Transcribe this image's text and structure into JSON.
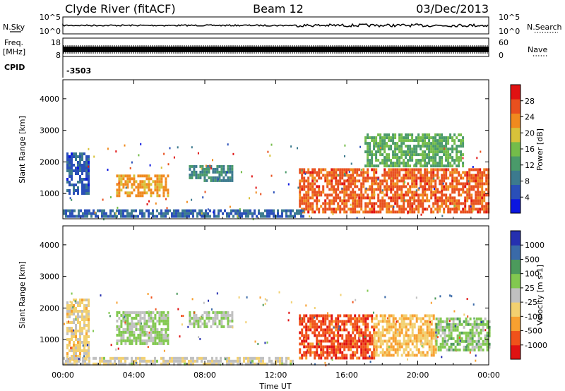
{
  "header": {
    "station": "Clyde River (fitACF)",
    "beam": "Beam 12",
    "date": "03/Dec/2013"
  },
  "top_panels": {
    "nsky": {
      "left_label": "N.Sky",
      "right_label": "N.Search",
      "ticks": [
        "10^5",
        "10^0"
      ],
      "right_ticks": [
        "10^5",
        "10^0"
      ]
    },
    "freq": {
      "left_label": "Freq.",
      "unit": "[MHz]",
      "ticks": [
        "18",
        "8"
      ],
      "right_label": "Nave",
      "right_ticks": [
        "60",
        "0"
      ]
    },
    "cpid": {
      "label": "CPID",
      "value": "-3503"
    }
  },
  "colors": {
    "power_scale": [
      "#0b16e0",
      "#2a4fb8",
      "#3c7a8e",
      "#4a9a6a",
      "#74bc4a",
      "#d8c23a",
      "#f08a1e",
      "#e8501e",
      "#e01212"
    ],
    "velocity_scale": [
      "#e01212",
      "#f0521a",
      "#f7a030",
      "#f2d070",
      "#c0c0c0",
      "#82c850",
      "#4c9a5c",
      "#3a6aa8",
      "#2630b0"
    ]
  },
  "chart_data": [
    {
      "type": "heatmap",
      "name_key": "power",
      "xlabel": "",
      "ylabel": "Slant Range [km]",
      "x_ticks": [
        "00:00",
        "04:00",
        "08:00",
        "12:00",
        "16:00",
        "20:00",
        "00:00"
      ],
      "x_range_hours": [
        0,
        24
      ],
      "y_ticks": [
        1000,
        2000,
        3000,
        4000
      ],
      "y_range_km": [
        200,
        4600
      ],
      "colorbar": {
        "label": "Power [dB]",
        "ticks": [
          "4",
          "8",
          "12",
          "16",
          "20",
          "24",
          "28"
        ],
        "range": [
          0,
          32
        ]
      },
      "regions": [
        {
          "t": [
            0.2,
            1.4
          ],
          "r": [
            1000,
            2300
          ],
          "value": 6
        },
        {
          "t": [
            3.0,
            5.9
          ],
          "r": [
            900,
            1600
          ],
          "value": 22
        },
        {
          "t": [
            7.1,
            9.6
          ],
          "r": [
            1400,
            1900
          ],
          "value": 10
        },
        {
          "t": [
            13.3,
            24.0
          ],
          "r": [
            400,
            1800
          ],
          "value": 26
        },
        {
          "t": [
            17.0,
            22.5
          ],
          "r": [
            1900,
            2900
          ],
          "value": 14
        },
        {
          "t": [
            0.0,
            13.5
          ],
          "r": [
            250,
            500
          ],
          "value": 7
        }
      ]
    },
    {
      "type": "heatmap",
      "name_key": "velocity",
      "xlabel": "Time UT",
      "ylabel": "Slant Range [km]",
      "x_ticks": [
        "00:00",
        "04:00",
        "08:00",
        "12:00",
        "16:00",
        "20:00",
        "00:00"
      ],
      "x_range_hours": [
        0,
        24
      ],
      "y_ticks": [
        1000,
        2000,
        3000,
        4000
      ],
      "y_range_km": [
        200,
        4600
      ],
      "colorbar": {
        "label": "Velocity [m s-1]",
        "ticks": [
          "-1000",
          "-500",
          "-100",
          "-25",
          "25",
          "100",
          "500",
          "1000"
        ],
        "range": [
          -1000,
          1000
        ]
      },
      "regions": [
        {
          "t": [
            0.2,
            1.4
          ],
          "r": [
            400,
            2300
          ],
          "value": -200
        },
        {
          "t": [
            3.0,
            5.9
          ],
          "r": [
            900,
            1900
          ],
          "value": 150
        },
        {
          "t": [
            7.1,
            9.6
          ],
          "r": [
            1400,
            1900
          ],
          "value": 100
        },
        {
          "t": [
            13.3,
            17.5
          ],
          "r": [
            400,
            1800
          ],
          "value": -700
        },
        {
          "t": [
            17.5,
            21.0
          ],
          "r": [
            500,
            1800
          ],
          "value": -300
        },
        {
          "t": [
            21.0,
            24.0
          ],
          "r": [
            700,
            1700
          ],
          "value": 200
        },
        {
          "t": [
            0.0,
            13.0
          ],
          "r": [
            250,
            450
          ],
          "value": -60
        }
      ]
    }
  ]
}
